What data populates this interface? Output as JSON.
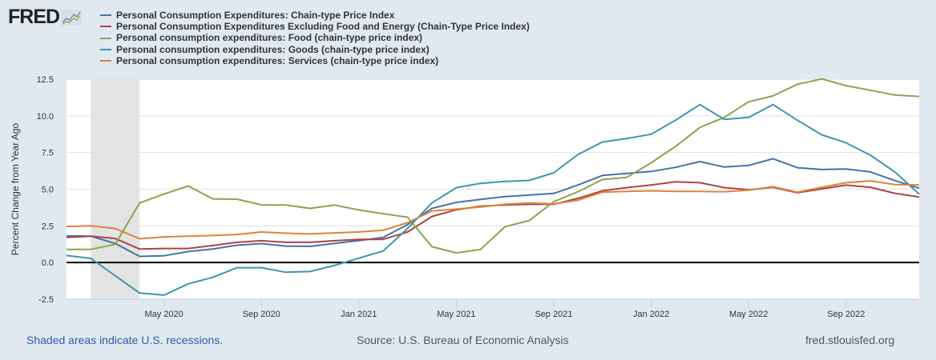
{
  "logo": {
    "text": "FRED"
  },
  "footer": {
    "recession_note": "Shaded areas indicate U.S. recessions.",
    "source": "Source: U.S. Bureau of Economic Analysis",
    "site": "fred.stlouisfed.org"
  },
  "chart_data": {
    "type": "line",
    "title": "",
    "xlabel": "",
    "ylabel": "Percent Change from Year Ago",
    "ylim": [
      -2.5,
      12.5
    ],
    "yticks": [
      "12.5",
      "10.0",
      "7.5",
      "5.0",
      "2.5",
      "0.0",
      "-2.5"
    ],
    "ytick_values": [
      12.5,
      10,
      7.5,
      5,
      2.5,
      0,
      -2.5
    ],
    "xticks": [
      {
        "label": "May 2020",
        "index": 4
      },
      {
        "label": "Sep 2020",
        "index": 8
      },
      {
        "label": "Jan 2021",
        "index": 12
      },
      {
        "label": "May 2021",
        "index": 16
      },
      {
        "label": "Sep 2021",
        "index": 20
      },
      {
        "label": "Jan 2022",
        "index": 24
      },
      {
        "label": "May 2022",
        "index": 28
      },
      {
        "label": "Sep 2022",
        "index": 32
      }
    ],
    "x": [
      "2020-01",
      "2020-02",
      "2020-03",
      "2020-04",
      "2020-05",
      "2020-06",
      "2020-07",
      "2020-08",
      "2020-09",
      "2020-10",
      "2020-11",
      "2020-12",
      "2021-01",
      "2021-02",
      "2021-03",
      "2021-04",
      "2021-05",
      "2021-06",
      "2021-07",
      "2021-08",
      "2021-09",
      "2021-10",
      "2021-11",
      "2021-12",
      "2022-01",
      "2022-02",
      "2022-03",
      "2022-04",
      "2022-05",
      "2022-06",
      "2022-07",
      "2022-08",
      "2022-09",
      "2022-10",
      "2022-11",
      "2022-12"
    ],
    "recession": {
      "start_index": 1,
      "end_index": 3
    },
    "grid": true,
    "legend_position": "top-left",
    "series": [
      {
        "name": "Personal Consumption Expenditures: Chain-type Price Index",
        "color": "#4572a7",
        "values": [
          1.82,
          1.8,
          1.3,
          0.42,
          0.46,
          0.75,
          0.92,
          1.18,
          1.29,
          1.12,
          1.1,
          1.3,
          1.5,
          1.71,
          2.59,
          3.69,
          4.1,
          4.3,
          4.49,
          4.6,
          4.71,
          5.29,
          5.94,
          6.08,
          6.21,
          6.49,
          6.88,
          6.51,
          6.62,
          7.08,
          6.47,
          6.34,
          6.38,
          6.18,
          5.59,
          5.07
        ]
      },
      {
        "name": "Personal Consumption Expenditures Excluding Food and Energy (Chain-Type Price Index)",
        "color": "#aa4643",
        "values": [
          1.71,
          1.8,
          1.64,
          0.92,
          0.96,
          0.96,
          1.16,
          1.38,
          1.49,
          1.38,
          1.38,
          1.49,
          1.58,
          1.58,
          2.08,
          3.14,
          3.6,
          3.84,
          3.92,
          3.97,
          3.97,
          4.38,
          4.89,
          5.11,
          5.29,
          5.5,
          5.44,
          5.11,
          4.96,
          5.13,
          4.76,
          5.02,
          5.28,
          5.13,
          4.72,
          4.47
        ]
      },
      {
        "name": "Personal consumption expenditures: Food (chain-type price index)",
        "color": "#89a54e",
        "values": [
          0.9,
          0.9,
          1.25,
          4.06,
          4.67,
          5.22,
          4.34,
          4.32,
          3.93,
          3.92,
          3.69,
          3.92,
          3.58,
          3.33,
          3.09,
          1.08,
          0.66,
          0.9,
          2.44,
          2.87,
          4.15,
          4.83,
          5.66,
          5.81,
          6.8,
          7.92,
          9.21,
          9.89,
          10.96,
          11.36,
          12.15,
          12.52,
          12.06,
          11.75,
          11.42,
          11.32
        ]
      },
      {
        "name": "Personal consumption expenditures: Goods (chain-type price index)",
        "color": "#3d96ae",
        "values": [
          0.48,
          0.28,
          -0.9,
          -2.08,
          -2.22,
          -1.45,
          -1.01,
          -0.35,
          -0.35,
          -0.66,
          -0.61,
          -0.2,
          0.3,
          0.79,
          2.32,
          4.06,
          5.11,
          5.4,
          5.53,
          5.6,
          6.12,
          7.37,
          8.22,
          8.46,
          8.75,
          9.7,
          10.77,
          9.76,
          9.89,
          10.77,
          9.7,
          8.71,
          8.16,
          7.32,
          6.18,
          4.67
        ]
      },
      {
        "name": "Personal consumption expenditures: Services (chain-type price index)",
        "color": "#db843d",
        "values": [
          2.46,
          2.5,
          2.32,
          1.62,
          1.75,
          1.8,
          1.84,
          1.91,
          2.08,
          2.0,
          1.95,
          2.02,
          2.08,
          2.2,
          2.72,
          3.51,
          3.64,
          3.79,
          3.97,
          4.06,
          4.0,
          4.25,
          4.8,
          4.85,
          4.89,
          4.85,
          4.85,
          4.83,
          4.93,
          5.17,
          4.8,
          5.13,
          5.44,
          5.57,
          5.31,
          5.29
        ]
      }
    ]
  }
}
